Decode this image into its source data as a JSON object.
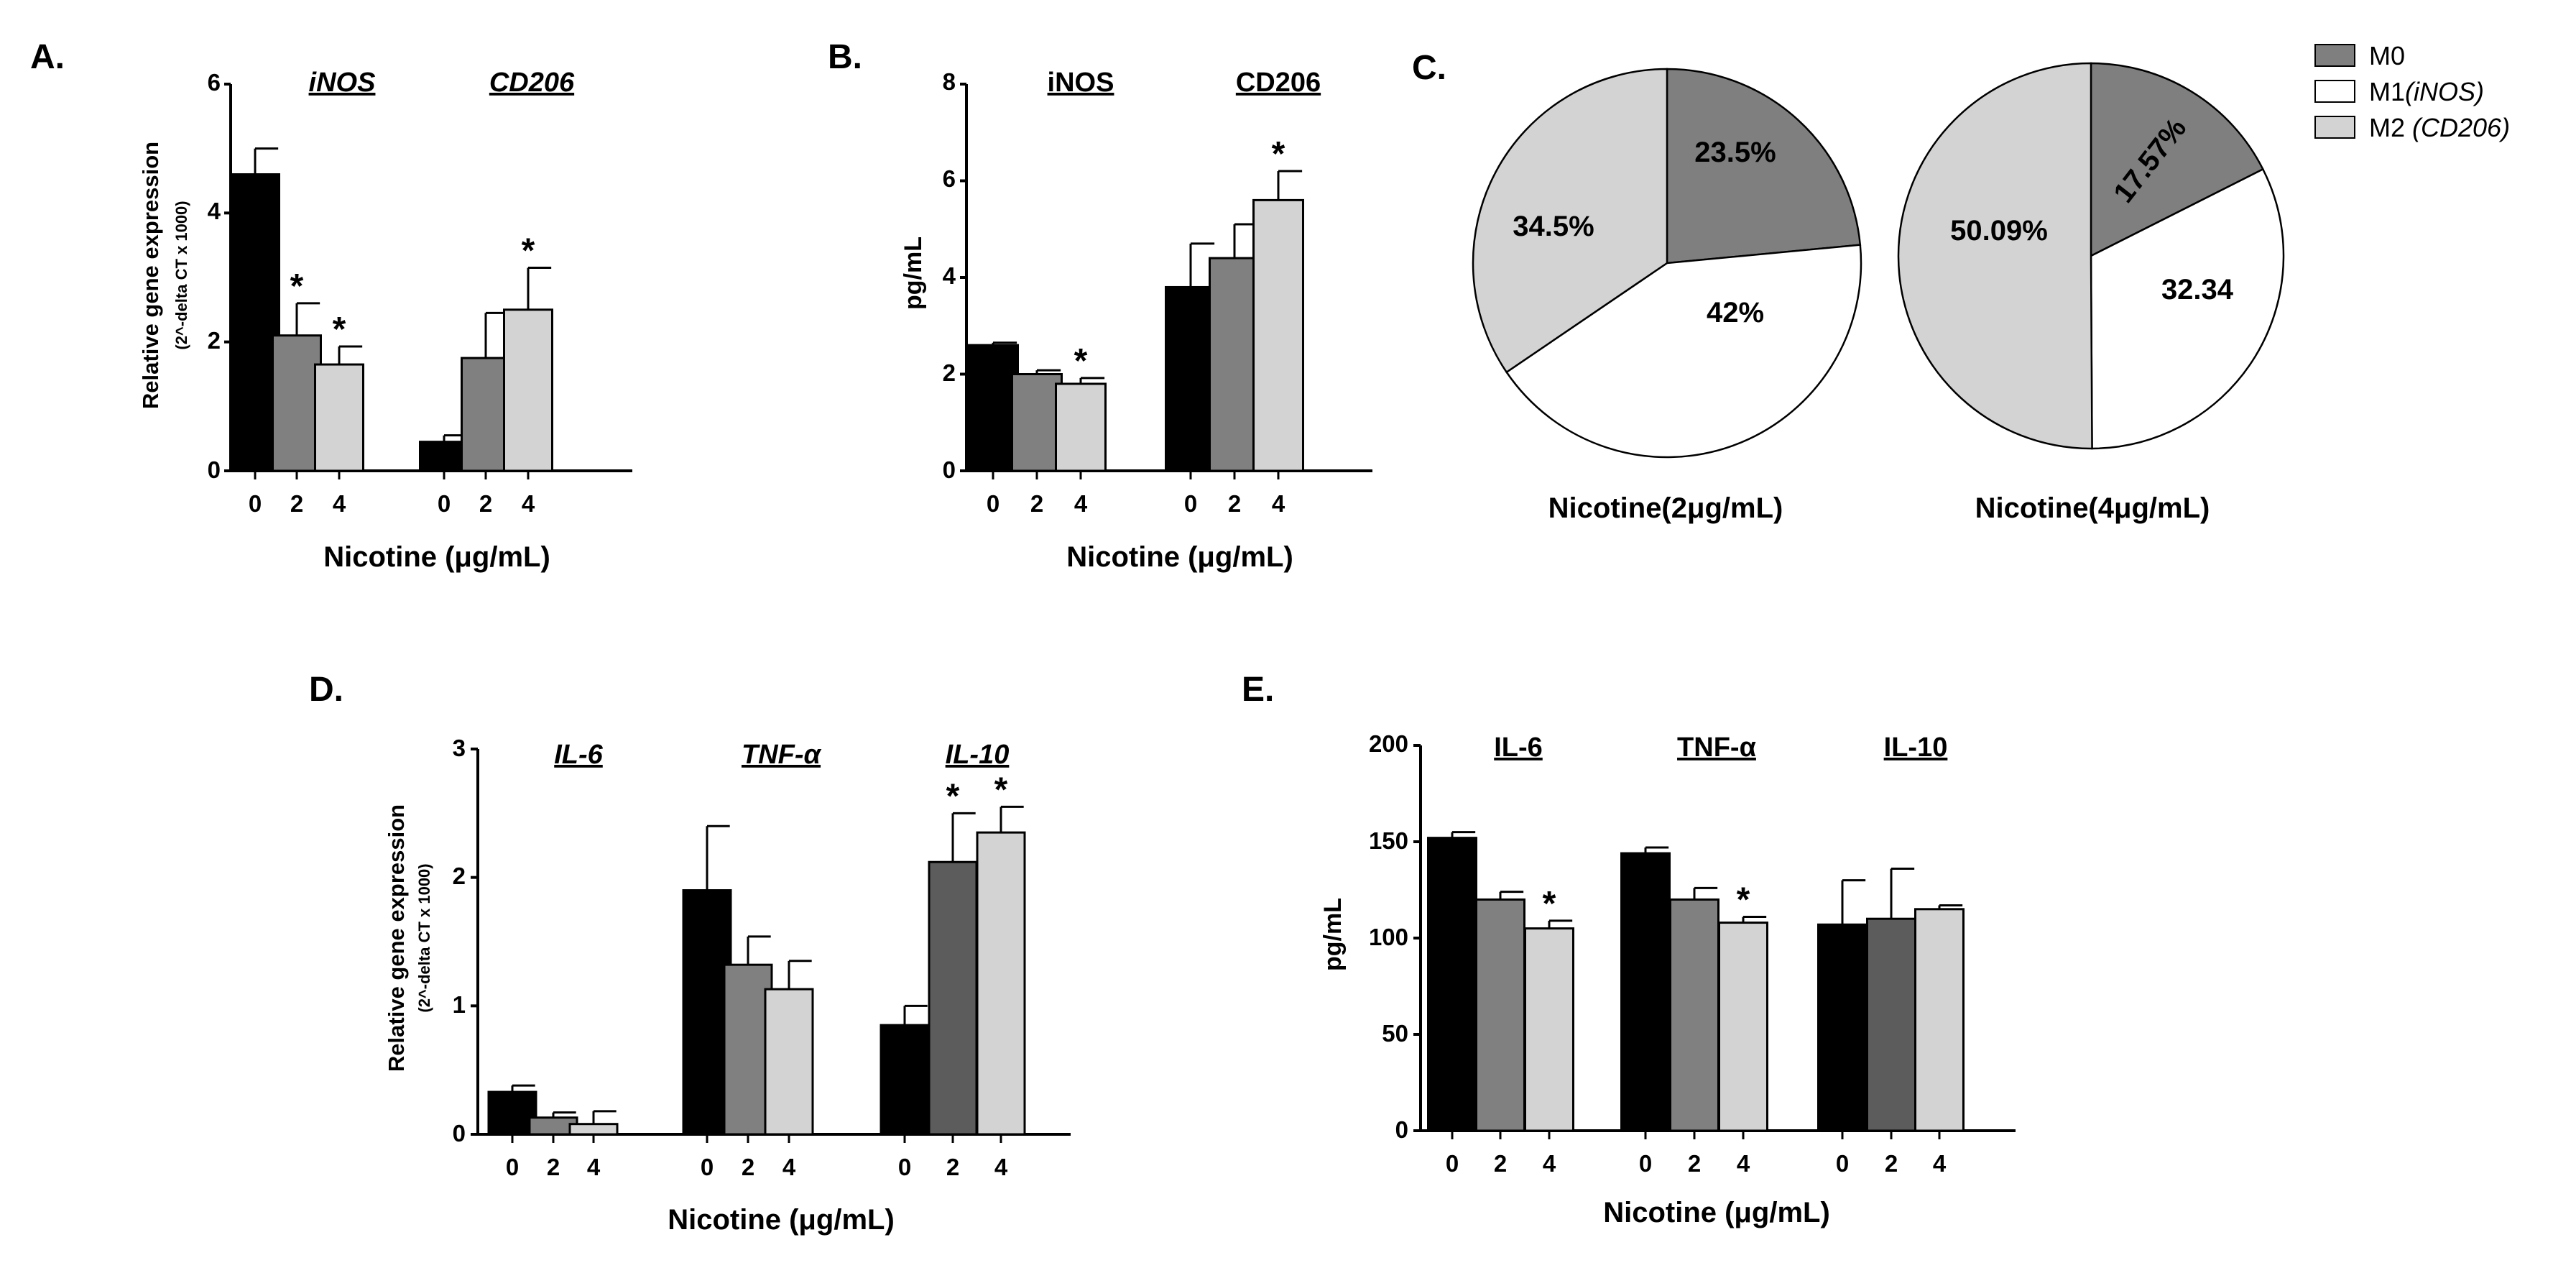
{
  "figure": {
    "colors": {
      "dose0": "#000000",
      "dose2": "#808080",
      "dose2_dark": "#5c5c5c",
      "dose4": "#d3d3d3",
      "m0": "#7f7f7f",
      "m1": "#ffffff",
      "m2": "#d3d3d3"
    }
  },
  "chart_data": [
    {
      "panel": "A.",
      "type": "bar",
      "ylabel": "Relative gene expression",
      "ylabel_sub": "(2^-delta CT x 1000)",
      "xlabel": "Nicotine (μg/mL)",
      "ylim": [
        0,
        6
      ],
      "yticks": [
        "0",
        "2",
        "4",
        "6"
      ],
      "groups": [
        {
          "name": "iNOS",
          "italic": true,
          "categories": [
            "0",
            "2",
            "4"
          ],
          "values": [
            4.6,
            2.1,
            1.65
          ],
          "errors": [
            0.4,
            0.5,
            0.28
          ],
          "significant": [
            false,
            true,
            true
          ]
        },
        {
          "name": "CD206",
          "italic": true,
          "categories": [
            "0",
            "2",
            "4"
          ],
          "values": [
            0.45,
            1.75,
            2.5
          ],
          "errors": [
            0.1,
            0.7,
            0.65
          ],
          "significant": [
            false,
            false,
            true
          ]
        }
      ],
      "sig_label": "*"
    },
    {
      "panel": "B.",
      "type": "bar",
      "ylabel": "pg/mL",
      "xlabel": "Nicotine (μg/mL)",
      "ylim": [
        0,
        8
      ],
      "yticks": [
        "0",
        "2",
        "4",
        "6",
        "8"
      ],
      "groups": [
        {
          "name": "iNOS",
          "italic": false,
          "categories": [
            "0",
            "2",
            "4"
          ],
          "values": [
            2.6,
            2.0,
            1.8
          ],
          "errors": [
            0.05,
            0.08,
            0.12
          ],
          "significant": [
            false,
            false,
            true
          ]
        },
        {
          "name": "CD206",
          "italic": false,
          "categories": [
            "0",
            "2",
            "4"
          ],
          "values": [
            3.8,
            4.4,
            5.6
          ],
          "errors": [
            0.9,
            0.7,
            0.6
          ],
          "significant": [
            false,
            false,
            true
          ]
        }
      ],
      "sig_label": "*"
    },
    {
      "panel": "C.",
      "type": "pie",
      "legend": [
        {
          "label": "M0",
          "italic_part": ""
        },
        {
          "label": "M1",
          "italic_part": "(iNOS)"
        },
        {
          "label": "M2",
          "italic_part": "(CD206)"
        }
      ],
      "pies": [
        {
          "caption": "Nicotine(2μg/mL)",
          "slices": [
            {
              "name": "M0",
              "value": 23.5,
              "label": "23.5%"
            },
            {
              "name": "M1",
              "value": 42,
              "label": "42%"
            },
            {
              "name": "M2",
              "value": 34.5,
              "label": "34.5%"
            }
          ]
        },
        {
          "caption": "Nicotine(4μg/mL)",
          "slices": [
            {
              "name": "M0",
              "value": 17.57,
              "label": "17.57%"
            },
            {
              "name": "M1",
              "value": 32.34,
              "label": "32.34"
            },
            {
              "name": "M2",
              "value": 50.09,
              "label": "50.09%"
            }
          ]
        }
      ]
    },
    {
      "panel": "D.",
      "type": "bar",
      "ylabel": "Relative gene expression",
      "ylabel_sub": "(2^-delta CT x 1000)",
      "xlabel": "Nicotine (μg/mL)",
      "ylim": [
        0,
        3
      ],
      "yticks": [
        "0",
        "1",
        "2",
        "3"
      ],
      "groups": [
        {
          "name": "IL-6",
          "italic": true,
          "categories": [
            "0",
            "2",
            "4"
          ],
          "values": [
            0.33,
            0.13,
            0.08
          ],
          "errors": [
            0.05,
            0.04,
            0.1
          ],
          "significant": [
            false,
            false,
            false
          ]
        },
        {
          "name": "TNF-α",
          "italic": true,
          "categories": [
            "0",
            "2",
            "4"
          ],
          "values": [
            1.9,
            1.32,
            1.13
          ],
          "errors": [
            0.5,
            0.22,
            0.22
          ],
          "significant": [
            false,
            false,
            false
          ]
        },
        {
          "name": "IL-10",
          "italic": true,
          "categories": [
            "0",
            "2",
            "4"
          ],
          "values": [
            0.85,
            2.12,
            2.35
          ],
          "errors": [
            0.15,
            0.38,
            0.2
          ],
          "significant": [
            false,
            true,
            true
          ]
        }
      ],
      "sig_label": "*"
    },
    {
      "panel": "E.",
      "type": "bar",
      "ylabel": "pg/mL",
      "xlabel": "Nicotine (μg/mL)",
      "ylim": [
        0,
        200
      ],
      "yticks": [
        "0",
        "50",
        "100",
        "150",
        "200"
      ],
      "groups": [
        {
          "name": "IL-6",
          "italic": false,
          "categories": [
            "0",
            "2",
            "4"
          ],
          "values": [
            152,
            120,
            105
          ],
          "errors": [
            3,
            4,
            4
          ],
          "significant": [
            false,
            false,
            true
          ]
        },
        {
          "name": "TNF-α",
          "italic": false,
          "categories": [
            "0",
            "2",
            "4"
          ],
          "values": [
            144,
            120,
            108
          ],
          "errors": [
            3,
            6,
            3
          ],
          "significant": [
            false,
            false,
            true
          ]
        },
        {
          "name": "IL-10",
          "italic": false,
          "categories": [
            "0",
            "2",
            "4"
          ],
          "values": [
            107,
            110,
            115
          ],
          "errors": [
            23,
            26,
            2
          ],
          "significant": [
            false,
            false,
            false
          ]
        }
      ],
      "sig_label": "*"
    }
  ]
}
